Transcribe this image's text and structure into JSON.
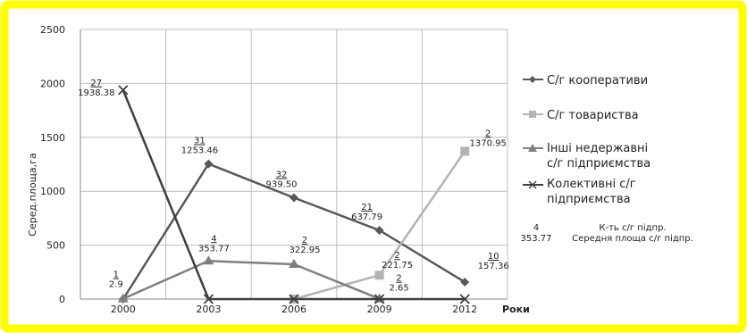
{
  "colors": {
    "frame_border": "#ffff00",
    "frame_fill": "#ffffff",
    "series_cooperatives": "#595959",
    "series_partnerships": "#b3b3b3",
    "series_other": "#808080",
    "series_collective": "#3f3f3f",
    "grid": "#bfbfbf"
  },
  "chart_data": {
    "type": "line",
    "categories": [
      "2000",
      "2003",
      "2006",
      "2009",
      "2012"
    ],
    "ylabel": "Серед.площа,га",
    "xlabel": "Роки",
    "ylim": [
      0,
      2500
    ],
    "yticks": [
      "0",
      "500",
      "1000",
      "1500",
      "2000",
      "2500"
    ],
    "grid": true,
    "legend_position": "right",
    "series": [
      {
        "name": "С/г кооперативи",
        "marker": "diamond",
        "values": [
          0,
          1253.46,
          939.5,
          637.79,
          157.36
        ],
        "labels": [
          {
            "count": "",
            "area": ""
          },
          {
            "count": "31",
            "area": "1253.46"
          },
          {
            "count": "32",
            "area": "939.50"
          },
          {
            "count": "21",
            "area": "637.79"
          },
          {
            "count": "10",
            "area": "157.36"
          }
        ]
      },
      {
        "name": "С/г товариства",
        "marker": "square",
        "values": [
          null,
          null,
          0,
          221.75,
          1370.95
        ],
        "labels": [
          {
            "count": "",
            "area": ""
          },
          {
            "count": "",
            "area": ""
          },
          {
            "count": "",
            "area": ""
          },
          {
            "count": "2",
            "area": "221.75"
          },
          {
            "count": "2",
            "area": "1370.95"
          }
        ]
      },
      {
        "name": "Інші недержавні с/г підприємства",
        "marker": "triangle",
        "values": [
          2.9,
          353.77,
          322.95,
          2.65,
          null
        ],
        "labels": [
          {
            "count": "1",
            "area": "2.9"
          },
          {
            "count": "4",
            "area": "353.77"
          },
          {
            "count": "2",
            "area": "322.95"
          },
          {
            "count": "2",
            "area": "2.65"
          },
          {
            "count": "",
            "area": ""
          }
        ]
      },
      {
        "name": "Колективні с/г підприємства",
        "marker": "x",
        "values": [
          1938.38,
          0,
          0,
          0,
          0
        ],
        "labels": [
          {
            "count": "27",
            "area": "1938.38"
          },
          {
            "count": "",
            "area": ""
          },
          {
            "count": "",
            "area": ""
          },
          {
            "count": "",
            "area": ""
          },
          {
            "count": "",
            "area": ""
          }
        ]
      }
    ],
    "legend": {
      "series_1": "С/г кооперативи",
      "series_2": "С/г товариства",
      "series_3_line1": "Інші недержавні",
      "series_3_line2": "с/г підприємства",
      "series_4_line1": "Колективні с/г",
      "series_4_line2": "підприємства"
    },
    "annotation": {
      "sample_count": "4",
      "sample_area": "353.77",
      "count_caption": "К-ть  с/г підпр.",
      "area_caption": "Середня площа  с/г підпр."
    }
  }
}
